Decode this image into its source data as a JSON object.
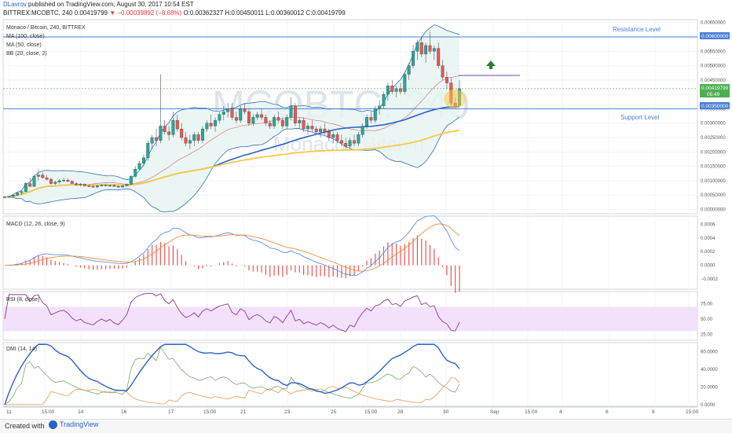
{
  "header": {
    "author": "DLavrov",
    "published": "published on TradingView.com, August 30, 2017 10:54 EST",
    "symbol_line": "BITTREX:MCOBTC, 240",
    "last": "0.00419799",
    "change": "−0.00039892 (−8.68%)",
    "ohlc": "O:0.00362327 H:0.00450011 L:0.00360012 C:0.00419799"
  },
  "main_legend": {
    "title": "Monaco / Bitcoin, 240, BITTREX",
    "ma100": "MA (100, close)",
    "ma50": "MA (50, close)",
    "bb": "BB (20, close, 2)"
  },
  "watermark": {
    "symbol": "MCOBTC, 240",
    "name": "Monaco / Bitcoin"
  },
  "annotations": {
    "resistance": "Resistance Level",
    "support": "Support Level"
  },
  "price_labels": {
    "resistance": "0.00600000",
    "last": "0.00419799",
    "countdown": "05:49",
    "support": "0.00350000"
  },
  "panes": {
    "macd": "MACD (12, 26, close, 9)",
    "rsi": "RSI (8, close)",
    "dmi": "DMI (14, 14)"
  },
  "x_ticks": [
    "11",
    "15:00",
    "14",
    "16",
    "17",
    "15:00",
    "21",
    "23",
    "25",
    "15:00",
    "28",
    "30",
    "Sep",
    "15:00",
    "4",
    "6",
    "8",
    "15:00"
  ],
  "footer": {
    "created": "Created with",
    "brand": "TradingView"
  },
  "colors": {
    "bull": "#26a69a",
    "bear": "#ef5350",
    "ma50": "#2962c9",
    "ma100": "#f7c948",
    "bb": "#2f6eb5",
    "bbfill": "#e6f4f1",
    "macd": "#5b8def",
    "signal": "#f28c38",
    "rsi": "#8e3a8f",
    "rsiband": "#f3e1fb",
    "level": "#4a7fd6"
  },
  "chart_data": [
    {
      "type": "candlestick",
      "title": "Monaco / Bitcoin, 240, BITTREX",
      "y_ticks": [
        0.0065,
        0.006,
        0.0055,
        0.005,
        0.0045,
        0.004,
        0.0035,
        0.003,
        0.0025,
        0.002,
        0.0015,
        0.001,
        0.0005,
        0.0
      ],
      "ylim": [
        -0.00015,
        0.0066
      ],
      "levels": {
        "resistance": 0.006,
        "support": 0.0035
      },
      "candles": [
        [
          0.00042,
          0.00046,
          0.00038,
          0.00044
        ],
        [
          0.00044,
          0.00048,
          0.0004,
          0.00045
        ],
        [
          0.00045,
          0.00052,
          0.00043,
          0.0005
        ],
        [
          0.0005,
          0.0006,
          0.00046,
          0.00058
        ],
        [
          0.00058,
          0.00066,
          0.00052,
          0.00062
        ],
        [
          0.00062,
          0.00095,
          0.0006,
          0.0009
        ],
        [
          0.0009,
          0.0011,
          0.00085,
          0.0008
        ],
        [
          0.0008,
          0.0012,
          0.00078,
          0.00115
        ],
        [
          0.00115,
          0.0014,
          0.001,
          0.0012
        ],
        [
          0.0012,
          0.0013,
          0.0011,
          0.0011
        ],
        [
          0.0011,
          0.0012,
          0.001,
          0.00105
        ],
        [
          0.00105,
          0.0011,
          0.00085,
          0.0009
        ],
        [
          0.0009,
          0.001,
          0.00085,
          0.00095
        ],
        [
          0.00095,
          0.00105,
          0.0009,
          0.001
        ],
        [
          0.001,
          0.0011,
          0.00095,
          0.00102
        ],
        [
          0.00102,
          0.00108,
          0.00095,
          0.00098
        ],
        [
          0.00098,
          0.00102,
          0.00088,
          0.0009
        ],
        [
          0.0009,
          0.00095,
          0.00082,
          0.00085
        ],
        [
          0.00085,
          0.00092,
          0.0008,
          0.00088
        ],
        [
          0.00088,
          0.0009,
          0.0008,
          0.00082
        ],
        [
          0.00082,
          0.00088,
          0.00078,
          0.0008
        ],
        [
          0.0008,
          0.00086,
          0.00075,
          0.00078
        ],
        [
          0.00078,
          0.00085,
          0.00074,
          0.00082
        ],
        [
          0.00082,
          0.00088,
          0.0008,
          0.00085
        ],
        [
          0.00085,
          0.0009,
          0.0008,
          0.00082
        ],
        [
          0.00082,
          0.00086,
          0.00078,
          0.00084
        ],
        [
          0.00084,
          0.00088,
          0.0008,
          0.0008
        ],
        [
          0.0008,
          0.00085,
          0.00076,
          0.00078
        ],
        [
          0.00078,
          0.00084,
          0.00075,
          0.00082
        ],
        [
          0.00082,
          0.0009,
          0.0008,
          0.00088
        ],
        [
          0.00088,
          0.0012,
          0.00085,
          0.00115
        ],
        [
          0.00115,
          0.0015,
          0.0011,
          0.0014
        ],
        [
          0.0014,
          0.0017,
          0.00135,
          0.0016
        ],
        [
          0.0016,
          0.0019,
          0.0015,
          0.0018
        ],
        [
          0.0018,
          0.0024,
          0.0017,
          0.0023
        ],
        [
          0.0023,
          0.0026,
          0.0021,
          0.0025
        ],
        [
          0.0025,
          0.0028,
          0.0022,
          0.0024
        ],
        [
          0.0024,
          0.0047,
          0.0023,
          0.0029
        ],
        [
          0.0029,
          0.0031,
          0.0026,
          0.0027
        ],
        [
          0.0027,
          0.0029,
          0.0024,
          0.0026
        ],
        [
          0.0026,
          0.0034,
          0.0025,
          0.0031
        ],
        [
          0.0031,
          0.0033,
          0.0027,
          0.0028
        ],
        [
          0.0028,
          0.003,
          0.0024,
          0.0025
        ],
        [
          0.0025,
          0.0027,
          0.0022,
          0.0023
        ],
        [
          0.0023,
          0.0026,
          0.0021,
          0.0024
        ],
        [
          0.0024,
          0.0027,
          0.0022,
          0.0026
        ],
        [
          0.0026,
          0.0027,
          0.0023,
          0.0024
        ],
        [
          0.0024,
          0.0029,
          0.0023,
          0.0028
        ],
        [
          0.0028,
          0.0031,
          0.0027,
          0.003
        ],
        [
          0.003,
          0.0033,
          0.0028,
          0.0029
        ],
        [
          0.0029,
          0.0032,
          0.0027,
          0.0031
        ],
        [
          0.0031,
          0.0034,
          0.003,
          0.0033
        ],
        [
          0.0033,
          0.0036,
          0.0031,
          0.0034
        ],
        [
          0.0034,
          0.0037,
          0.0032,
          0.0035
        ],
        [
          0.0035,
          0.0037,
          0.0031,
          0.0032
        ],
        [
          0.0032,
          0.0034,
          0.003,
          0.0031
        ],
        [
          0.0031,
          0.0036,
          0.003,
          0.0035
        ],
        [
          0.0035,
          0.0037,
          0.0033,
          0.0034
        ],
        [
          0.0034,
          0.0035,
          0.0029,
          0.003
        ],
        [
          0.003,
          0.0033,
          0.0029,
          0.0032
        ],
        [
          0.0032,
          0.0034,
          0.0031,
          0.0033
        ],
        [
          0.0033,
          0.0035,
          0.0031,
          0.0032
        ],
        [
          0.0032,
          0.0033,
          0.0029,
          0.003
        ],
        [
          0.003,
          0.0031,
          0.0028,
          0.0029
        ],
        [
          0.0029,
          0.0033,
          0.0028,
          0.0032
        ],
        [
          0.0032,
          0.0034,
          0.003,
          0.0031
        ],
        [
          0.0031,
          0.0032,
          0.0028,
          0.0029
        ],
        [
          0.0029,
          0.0033,
          0.0028,
          0.0032
        ],
        [
          0.0032,
          0.0039,
          0.0031,
          0.0036
        ],
        [
          0.0036,
          0.0037,
          0.0029,
          0.003
        ],
        [
          0.003,
          0.0032,
          0.0028,
          0.0031
        ],
        [
          0.0031,
          0.0032,
          0.0027,
          0.0028
        ],
        [
          0.0028,
          0.003,
          0.0026,
          0.0029
        ],
        [
          0.0029,
          0.0031,
          0.0027,
          0.0028
        ],
        [
          0.0028,
          0.0029,
          0.0026,
          0.0027
        ],
        [
          0.0027,
          0.0029,
          0.0025,
          0.0028
        ],
        [
          0.0028,
          0.003,
          0.0026,
          0.0027
        ],
        [
          0.0027,
          0.0028,
          0.0024,
          0.0025
        ],
        [
          0.0025,
          0.0027,
          0.0023,
          0.0026
        ],
        [
          0.0026,
          0.0027,
          0.0023,
          0.0024
        ],
        [
          0.0024,
          0.0026,
          0.0022,
          0.0023
        ],
        [
          0.0023,
          0.0025,
          0.0021,
          0.0022
        ],
        [
          0.0022,
          0.0025,
          0.0021,
          0.0024
        ],
        [
          0.0024,
          0.0026,
          0.0022,
          0.0023
        ],
        [
          0.0023,
          0.0027,
          0.0022,
          0.0026
        ],
        [
          0.0026,
          0.003,
          0.0025,
          0.0029
        ],
        [
          0.0029,
          0.0033,
          0.0028,
          0.0032
        ],
        [
          0.0032,
          0.0034,
          0.003,
          0.0031
        ],
        [
          0.0031,
          0.0036,
          0.003,
          0.0035
        ],
        [
          0.0035,
          0.0038,
          0.0033,
          0.0036
        ],
        [
          0.0036,
          0.0041,
          0.0035,
          0.004
        ],
        [
          0.004,
          0.0044,
          0.0038,
          0.0043
        ],
        [
          0.0043,
          0.0045,
          0.004,
          0.0041
        ],
        [
          0.0041,
          0.0043,
          0.0039,
          0.0042
        ],
        [
          0.0042,
          0.0044,
          0.004,
          0.0041
        ],
        [
          0.0041,
          0.0048,
          0.004,
          0.0047
        ],
        [
          0.0047,
          0.0051,
          0.0045,
          0.005
        ],
        [
          0.005,
          0.0057,
          0.0049,
          0.0055
        ],
        [
          0.0055,
          0.0059,
          0.0052,
          0.0058
        ],
        [
          0.0058,
          0.006,
          0.0053,
          0.0054
        ],
        [
          0.0054,
          0.0058,
          0.0051,
          0.0057
        ],
        [
          0.0057,
          0.0062,
          0.0054,
          0.0055
        ],
        [
          0.0055,
          0.0057,
          0.0052,
          0.0056
        ],
        [
          0.0056,
          0.0058,
          0.0049,
          0.005
        ],
        [
          0.005,
          0.0052,
          0.0045,
          0.0046
        ],
        [
          0.0046,
          0.0048,
          0.0042,
          0.0044
        ],
        [
          0.0044,
          0.0046,
          0.0036,
          0.0037
        ],
        [
          0.0037,
          0.0039,
          0.0035,
          0.0036
        ],
        [
          0.00362,
          0.0045,
          0.0036,
          0.0042
        ]
      ]
    },
    {
      "type": "line",
      "name": "MACD (12, 26, close, 9)",
      "y_ticks": [
        0.0006,
        0.0004,
        0.0002,
        0.0,
        -0.0002
      ],
      "ylim": [
        -0.00035,
        0.00072
      ]
    },
    {
      "type": "line",
      "name": "RSI (8, close)",
      "y_ticks": [
        75,
        50,
        25
      ],
      "ylim": [
        15,
        95
      ],
      "band": [
        30,
        70
      ]
    },
    {
      "type": "line",
      "name": "DMI (14, 14)",
      "y_ticks": [
        60,
        40,
        20,
        0
      ],
      "ylim": [
        -2,
        70
      ]
    }
  ]
}
